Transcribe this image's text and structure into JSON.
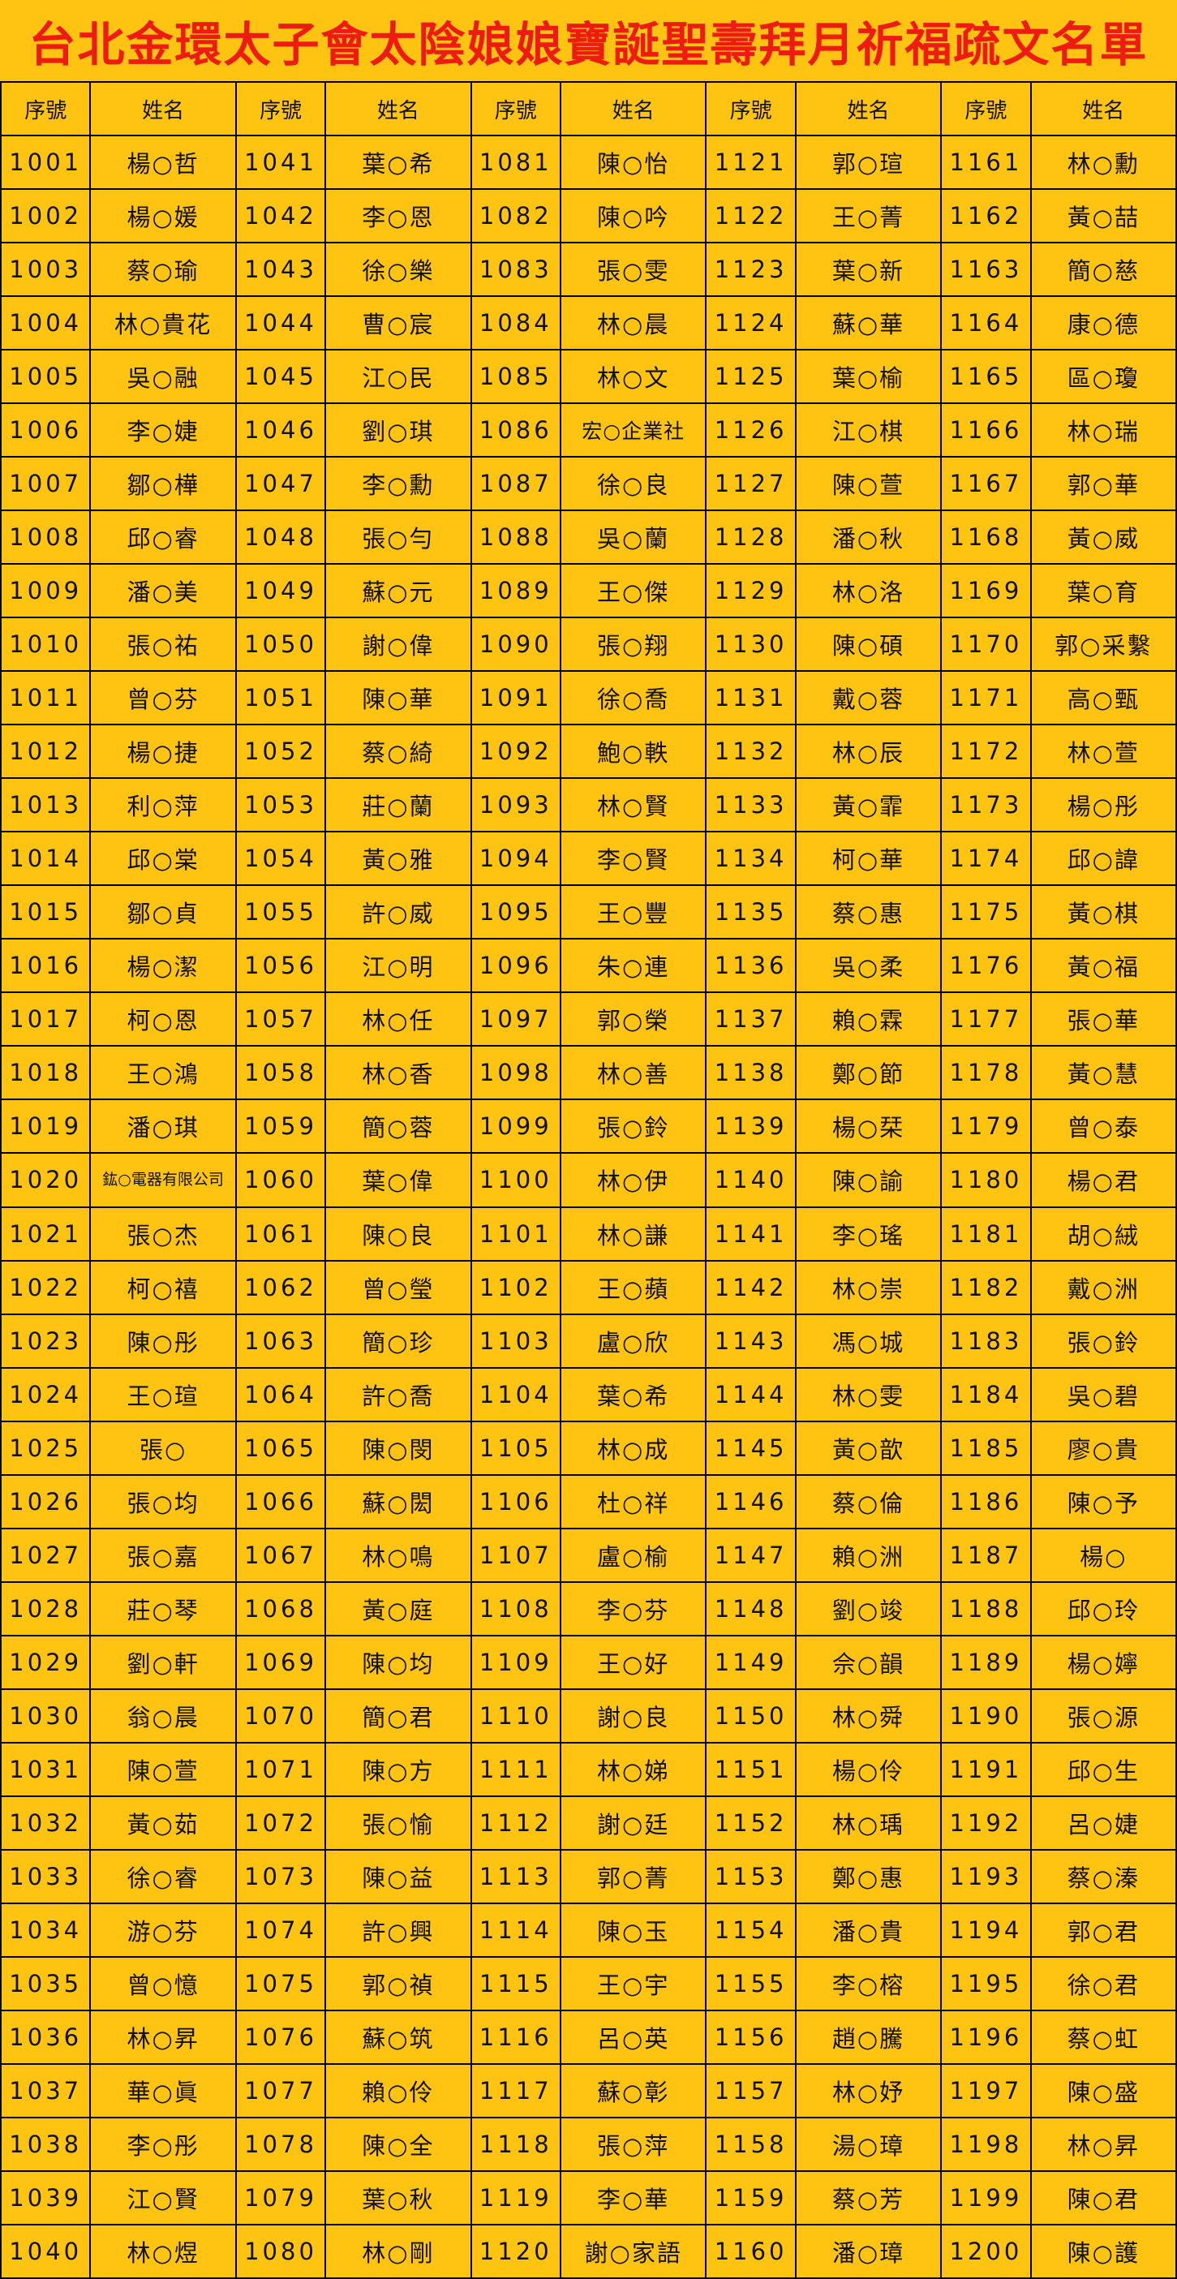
{
  "page": {
    "title": "台北金環太子會太陰娘娘寶誕聖壽拜月祈福疏文名單",
    "background_color": "#FFC312",
    "title_color": "#ED1B10",
    "grid_line_color": "#000000",
    "text_color": "#111111"
  },
  "table": {
    "serial_header": "序號",
    "name_header": "姓名",
    "columns": [
      {
        "rows": [
          {
            "no": "1001",
            "name": "楊○哲"
          },
          {
            "no": "1002",
            "name": "楊○媛"
          },
          {
            "no": "1003",
            "name": "蔡○瑜"
          },
          {
            "no": "1004",
            "name": "林○貴花"
          },
          {
            "no": "1005",
            "name": "吳○融"
          },
          {
            "no": "1006",
            "name": "李○婕"
          },
          {
            "no": "1007",
            "name": "鄒○樺"
          },
          {
            "no": "1008",
            "name": "邱○睿"
          },
          {
            "no": "1009",
            "name": "潘○美"
          },
          {
            "no": "1010",
            "name": "張○祐"
          },
          {
            "no": "1011",
            "name": "曾○芬"
          },
          {
            "no": "1012",
            "name": "楊○捷"
          },
          {
            "no": "1013",
            "name": "利○萍"
          },
          {
            "no": "1014",
            "name": "邱○棠"
          },
          {
            "no": "1015",
            "name": "鄒○貞"
          },
          {
            "no": "1016",
            "name": "楊○潔"
          },
          {
            "no": "1017",
            "name": "柯○恩"
          },
          {
            "no": "1018",
            "name": "王○鴻"
          },
          {
            "no": "1019",
            "name": "潘○琪"
          },
          {
            "no": "1020",
            "name": "鈜○電器有限公司"
          },
          {
            "no": "1021",
            "name": "張○杰"
          },
          {
            "no": "1022",
            "name": "柯○禧"
          },
          {
            "no": "1023",
            "name": "陳○彤"
          },
          {
            "no": "1024",
            "name": "王○瑄"
          },
          {
            "no": "1025",
            "name": "張○"
          },
          {
            "no": "1026",
            "name": "張○均"
          },
          {
            "no": "1027",
            "name": "張○嘉"
          },
          {
            "no": "1028",
            "name": "莊○琴"
          },
          {
            "no": "1029",
            "name": "劉○軒"
          },
          {
            "no": "1030",
            "name": "翁○晨"
          },
          {
            "no": "1031",
            "name": "陳○萱"
          },
          {
            "no": "1032",
            "name": "黃○茹"
          },
          {
            "no": "1033",
            "name": "徐○睿"
          },
          {
            "no": "1034",
            "name": "游○芬"
          },
          {
            "no": "1035",
            "name": "曾○憶"
          },
          {
            "no": "1036",
            "name": "林○昇"
          },
          {
            "no": "1037",
            "name": "華○眞"
          },
          {
            "no": "1038",
            "name": "李○彤"
          },
          {
            "no": "1039",
            "name": "江○賢"
          },
          {
            "no": "1040",
            "name": "林○煜"
          }
        ]
      },
      {
        "rows": [
          {
            "no": "1041",
            "name": "葉○希"
          },
          {
            "no": "1042",
            "name": "李○恩"
          },
          {
            "no": "1043",
            "name": "徐○樂"
          },
          {
            "no": "1044",
            "name": "曹○宸"
          },
          {
            "no": "1045",
            "name": "江○民"
          },
          {
            "no": "1046",
            "name": "劉○琪"
          },
          {
            "no": "1047",
            "name": "李○勳"
          },
          {
            "no": "1048",
            "name": "張○勻"
          },
          {
            "no": "1049",
            "name": "蘇○元"
          },
          {
            "no": "1050",
            "name": "謝○偉"
          },
          {
            "no": "1051",
            "name": "陳○華"
          },
          {
            "no": "1052",
            "name": "蔡○綺"
          },
          {
            "no": "1053",
            "name": "莊○蘭"
          },
          {
            "no": "1054",
            "name": "黃○雅"
          },
          {
            "no": "1055",
            "name": "許○威"
          },
          {
            "no": "1056",
            "name": "江○明"
          },
          {
            "no": "1057",
            "name": "林○任"
          },
          {
            "no": "1058",
            "name": "林○香"
          },
          {
            "no": "1059",
            "name": "簡○蓉"
          },
          {
            "no": "1060",
            "name": "葉○偉"
          },
          {
            "no": "1061",
            "name": "陳○良"
          },
          {
            "no": "1062",
            "name": "曾○瑩"
          },
          {
            "no": "1063",
            "name": "簡○珍"
          },
          {
            "no": "1064",
            "name": "許○喬"
          },
          {
            "no": "1065",
            "name": "陳○閔"
          },
          {
            "no": "1066",
            "name": "蘇○閎"
          },
          {
            "no": "1067",
            "name": "林○鳴"
          },
          {
            "no": "1068",
            "name": "黃○庭"
          },
          {
            "no": "1069",
            "name": "陳○均"
          },
          {
            "no": "1070",
            "name": "簡○君"
          },
          {
            "no": "1071",
            "name": "陳○方"
          },
          {
            "no": "1072",
            "name": "張○愉"
          },
          {
            "no": "1073",
            "name": "陳○益"
          },
          {
            "no": "1074",
            "name": "許○興"
          },
          {
            "no": "1075",
            "name": "郭○禎"
          },
          {
            "no": "1076",
            "name": "蘇○筑"
          },
          {
            "no": "1077",
            "name": "賴○伶"
          },
          {
            "no": "1078",
            "name": "陳○全"
          },
          {
            "no": "1079",
            "name": "葉○秋"
          },
          {
            "no": "1080",
            "name": "林○剛"
          }
        ]
      },
      {
        "rows": [
          {
            "no": "1081",
            "name": "陳○怡"
          },
          {
            "no": "1082",
            "name": "陳○吟"
          },
          {
            "no": "1083",
            "name": "張○雯"
          },
          {
            "no": "1084",
            "name": "林○晨"
          },
          {
            "no": "1085",
            "name": "林○文"
          },
          {
            "no": "1086",
            "name": "宏○企業社"
          },
          {
            "no": "1087",
            "name": "徐○良"
          },
          {
            "no": "1088",
            "name": "吳○蘭"
          },
          {
            "no": "1089",
            "name": "王○傑"
          },
          {
            "no": "1090",
            "name": "張○翔"
          },
          {
            "no": "1091",
            "name": "徐○喬"
          },
          {
            "no": "1092",
            "name": "鮑○軼"
          },
          {
            "no": "1093",
            "name": "林○賢"
          },
          {
            "no": "1094",
            "name": "李○賢"
          },
          {
            "no": "1095",
            "name": "王○豐"
          },
          {
            "no": "1096",
            "name": "朱○連"
          },
          {
            "no": "1097",
            "name": "郭○榮"
          },
          {
            "no": "1098",
            "name": "林○善"
          },
          {
            "no": "1099",
            "name": "張○鈴"
          },
          {
            "no": "1100",
            "name": "林○伊"
          },
          {
            "no": "1101",
            "name": "林○謙"
          },
          {
            "no": "1102",
            "name": "王○蘋"
          },
          {
            "no": "1103",
            "name": "盧○欣"
          },
          {
            "no": "1104",
            "name": "葉○希"
          },
          {
            "no": "1105",
            "name": "林○成"
          },
          {
            "no": "1106",
            "name": "杜○祥"
          },
          {
            "no": "1107",
            "name": "盧○榆"
          },
          {
            "no": "1108",
            "name": "李○芬"
          },
          {
            "no": "1109",
            "name": "王○好"
          },
          {
            "no": "1110",
            "name": "謝○良"
          },
          {
            "no": "1111",
            "name": "林○娣"
          },
          {
            "no": "1112",
            "name": "謝○廷"
          },
          {
            "no": "1113",
            "name": "郭○菁"
          },
          {
            "no": "1114",
            "name": "陳○玉"
          },
          {
            "no": "1115",
            "name": "王○宇"
          },
          {
            "no": "1116",
            "name": "呂○英"
          },
          {
            "no": "1117",
            "name": "蘇○彰"
          },
          {
            "no": "1118",
            "name": "張○萍"
          },
          {
            "no": "1119",
            "name": "李○華"
          },
          {
            "no": "1120",
            "name": "謝○家語"
          }
        ]
      },
      {
        "rows": [
          {
            "no": "1121",
            "name": "郭○瑄"
          },
          {
            "no": "1122",
            "name": "王○菁"
          },
          {
            "no": "1123",
            "name": "葉○新"
          },
          {
            "no": "1124",
            "name": "蘇○華"
          },
          {
            "no": "1125",
            "name": "葉○榆"
          },
          {
            "no": "1126",
            "name": "江○棋"
          },
          {
            "no": "1127",
            "name": "陳○萱"
          },
          {
            "no": "1128",
            "name": "潘○秋"
          },
          {
            "no": "1129",
            "name": "林○洛"
          },
          {
            "no": "1130",
            "name": "陳○碩"
          },
          {
            "no": "1131",
            "name": "戴○蓉"
          },
          {
            "no": "1132",
            "name": "林○辰"
          },
          {
            "no": "1133",
            "name": "黃○霏"
          },
          {
            "no": "1134",
            "name": "柯○華"
          },
          {
            "no": "1135",
            "name": "蔡○惠"
          },
          {
            "no": "1136",
            "name": "吳○柔"
          },
          {
            "no": "1137",
            "name": "賴○霖"
          },
          {
            "no": "1138",
            "name": "鄭○節"
          },
          {
            "no": "1139",
            "name": "楊○栞"
          },
          {
            "no": "1140",
            "name": "陳○諭"
          },
          {
            "no": "1141",
            "name": "李○瑤"
          },
          {
            "no": "1142",
            "name": "林○崇"
          },
          {
            "no": "1143",
            "name": "馮○城"
          },
          {
            "no": "1144",
            "name": "林○雯"
          },
          {
            "no": "1145",
            "name": "黃○歆"
          },
          {
            "no": "1146",
            "name": "蔡○倫"
          },
          {
            "no": "1147",
            "name": "賴○洲"
          },
          {
            "no": "1148",
            "name": "劉○竣"
          },
          {
            "no": "1149",
            "name": "佘○韻"
          },
          {
            "no": "1150",
            "name": "林○舜"
          },
          {
            "no": "1151",
            "name": "楊○伶"
          },
          {
            "no": "1152",
            "name": "林○瑀"
          },
          {
            "no": "1153",
            "name": "鄭○惠"
          },
          {
            "no": "1154",
            "name": "潘○貴"
          },
          {
            "no": "1155",
            "name": "李○榕"
          },
          {
            "no": "1156",
            "name": "趙○騰"
          },
          {
            "no": "1157",
            "name": "林○妤"
          },
          {
            "no": "1158",
            "name": "湯○璋"
          },
          {
            "no": "1159",
            "name": "蔡○芳"
          },
          {
            "no": "1160",
            "name": "潘○璋"
          }
        ]
      },
      {
        "rows": [
          {
            "no": "1161",
            "name": "林○勳"
          },
          {
            "no": "1162",
            "name": "黃○喆"
          },
          {
            "no": "1163",
            "name": "簡○慈"
          },
          {
            "no": "1164",
            "name": "康○德"
          },
          {
            "no": "1165",
            "name": "區○瓊"
          },
          {
            "no": "1166",
            "name": "林○瑞"
          },
          {
            "no": "1167",
            "name": "郭○華"
          },
          {
            "no": "1168",
            "name": "黃○威"
          },
          {
            "no": "1169",
            "name": "葉○育"
          },
          {
            "no": "1170",
            "name": "郭○采繫"
          },
          {
            "no": "1171",
            "name": "高○甄"
          },
          {
            "no": "1172",
            "name": "林○萱"
          },
          {
            "no": "1173",
            "name": "楊○彤"
          },
          {
            "no": "1174",
            "name": "邱○諱"
          },
          {
            "no": "1175",
            "name": "黃○棋"
          },
          {
            "no": "1176",
            "name": "黃○福"
          },
          {
            "no": "1177",
            "name": "張○華"
          },
          {
            "no": "1178",
            "name": "黃○慧"
          },
          {
            "no": "1179",
            "name": "曾○泰"
          },
          {
            "no": "1180",
            "name": "楊○君"
          },
          {
            "no": "1181",
            "name": "胡○絨"
          },
          {
            "no": "1182",
            "name": "戴○洲"
          },
          {
            "no": "1183",
            "name": "張○鈴"
          },
          {
            "no": "1184",
            "name": "吳○碧"
          },
          {
            "no": "1185",
            "name": "廖○貴"
          },
          {
            "no": "1186",
            "name": "陳○予"
          },
          {
            "no": "1187",
            "name": "楊○"
          },
          {
            "no": "1188",
            "name": "邱○玲"
          },
          {
            "no": "1189",
            "name": "楊○嬣"
          },
          {
            "no": "1190",
            "name": "張○源"
          },
          {
            "no": "1191",
            "name": "邱○生"
          },
          {
            "no": "1192",
            "name": "呂○婕"
          },
          {
            "no": "1193",
            "name": "蔡○溱"
          },
          {
            "no": "1194",
            "name": "郭○君"
          },
          {
            "no": "1195",
            "name": "徐○君"
          },
          {
            "no": "1196",
            "name": "蔡○虹"
          },
          {
            "no": "1197",
            "name": "陳○盛"
          },
          {
            "no": "1198",
            "name": "林○昇"
          },
          {
            "no": "1199",
            "name": "陳○君"
          },
          {
            "no": "1200",
            "name": "陳○護"
          }
        ]
      }
    ]
  }
}
